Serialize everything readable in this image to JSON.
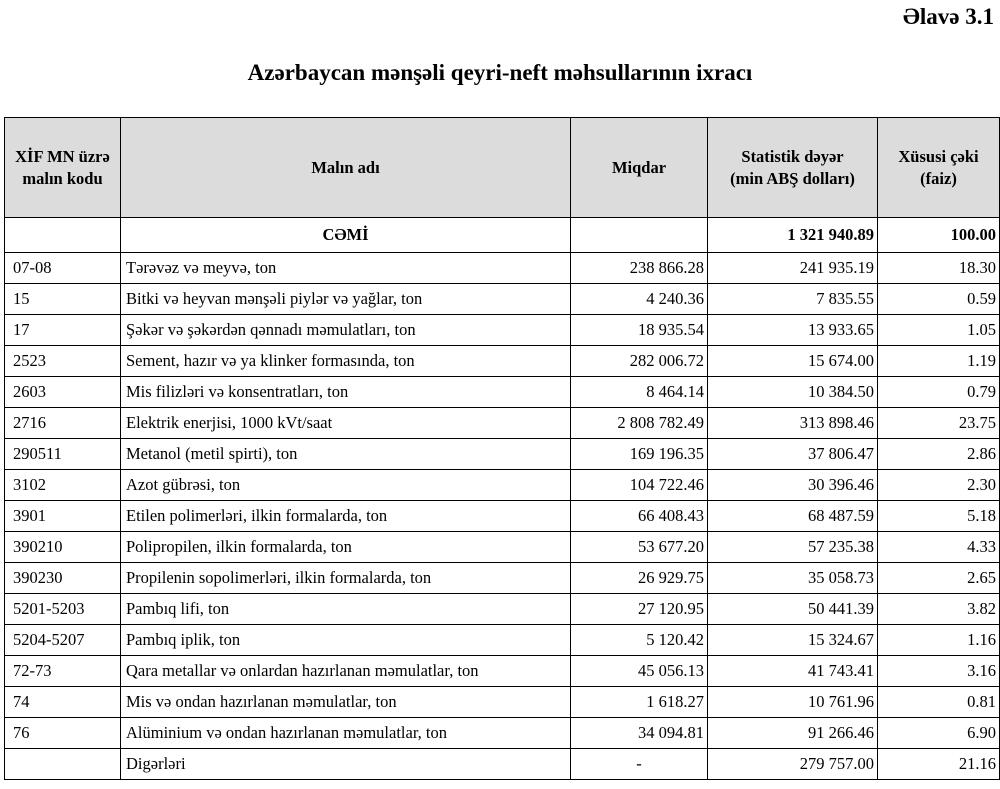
{
  "annex_label": "Əlavə 3.1",
  "title": "Azərbaycan mənşəli qeyri-neft məhsullarının ixracı",
  "table": {
    "headers": {
      "code": [
        "XİF MN üzrə",
        "malın kodu"
      ],
      "name": "Malın adı",
      "quantity": "Miqdar",
      "value": [
        "Statistik dəyər",
        "(min ABŞ dolları)"
      ],
      "share": [
        "Xüsusi çəki",
        "(faiz)"
      ]
    },
    "total": {
      "label": "CƏMİ",
      "value": "1 321 940.89",
      "share": "100.00"
    },
    "rows": [
      {
        "code": " 07-08",
        "name": "Tərəvəz və meyvə, ton",
        "quantity": "238 866.28",
        "value": "241 935.19",
        "share": "18.30"
      },
      {
        "code": "15",
        "name": "Bitki və heyvan mənşəli piylər və yağlar, ton",
        "quantity": "4 240.36",
        "value": "7 835.55",
        "share": "0.59"
      },
      {
        "code": "17",
        "name": "Şəkər və şəkərdən qənnadı məmulatları, ton",
        "quantity": "18 935.54",
        "value": "13 933.65",
        "share": "1.05"
      },
      {
        "code": "2523",
        "name": "Sement, hazır və ya klinker formasında, ton",
        "quantity": "282 006.72",
        "value": "15 674.00",
        "share": "1.19"
      },
      {
        "code": "2603",
        "name": "Mis filizləri və konsentratları, ton",
        "quantity": "8 464.14",
        "value": "10 384.50",
        "share": "0.79"
      },
      {
        "code": "2716",
        "name": "Elektrik enerjisi, 1000 kVt/saat",
        "quantity": "2 808 782.49",
        "value": "313 898.46",
        "share": "23.75"
      },
      {
        "code": "290511",
        "name": "Metanol (metil spirti), ton",
        "quantity": "169 196.35",
        "value": "37 806.47",
        "share": "2.86"
      },
      {
        "code": "3102",
        "name": "Azot gübrəsi, ton",
        "quantity": "104 722.46",
        "value": "30 396.46",
        "share": "2.30"
      },
      {
        "code": "3901",
        "name": "Etilen polimerləri, ilkin formalarda, ton",
        "quantity": "66 408.43",
        "value": "68 487.59",
        "share": "5.18"
      },
      {
        "code": "390210",
        "name": "Polipropilen, ilkin formalarda, ton",
        "quantity": "53 677.20",
        "value": "57 235.38",
        "share": "4.33"
      },
      {
        "code": "390230",
        "name": "Propilenin sopolimerləri, ilkin formalarda, ton",
        "quantity": "26 929.75",
        "value": "35 058.73",
        "share": "2.65"
      },
      {
        "code": "5201-5203",
        "name": "Pambıq lifi, ton",
        "quantity": "27 120.95",
        "value": "50 441.39",
        "share": "3.82"
      },
      {
        "code": "5204-5207",
        "name": "Pambıq iplik, ton",
        "quantity": "5 120.42",
        "value": "15 324.67",
        "share": "1.16"
      },
      {
        "code": "72-73",
        "name": "Qara metallar və onlardan hazırlanan məmulatlar, ton",
        "quantity": "45 056.13",
        "value": "41 743.41",
        "share": "3.16"
      },
      {
        "code": "74",
        "name": "Mis və ondan hazırlanan məmulatlar, ton",
        "quantity": "1 618.27",
        "value": "10 761.96",
        "share": "0.81"
      },
      {
        "code": "76",
        "name": "Alüminium və ondan hazırlanan məmulatlar, ton",
        "quantity": "34 094.81",
        "value": "91 266.46",
        "share": "6.90"
      },
      {
        "code": "",
        "name": "Digərləri",
        "quantity": "-",
        "value": "279 757.00",
        "share": "21.16",
        "quantity_centered": true
      }
    ]
  }
}
